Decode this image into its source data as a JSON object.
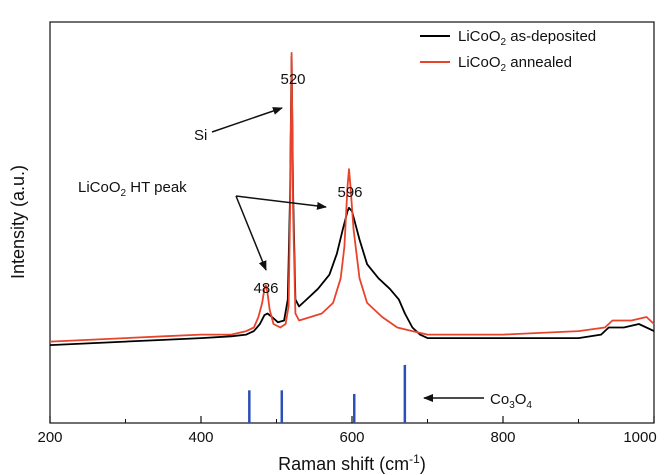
{
  "chart_data": {
    "type": "line",
    "title": "",
    "xlabel": "Raman shift (cm",
    "xlabel_sup": "-1",
    "xlabel_close": ")",
    "ylabel": "Intensity (a.u.)",
    "xlim": [
      200,
      1000
    ],
    "ylim": [
      0,
      100
    ],
    "x_ticks": [
      "200",
      "400",
      "600",
      "800",
      "1000"
    ],
    "x_tick_values": [
      200,
      400,
      600,
      800,
      1000
    ],
    "legend_position": "top-right",
    "grid": false,
    "series": [
      {
        "name_main": "LiCoO",
        "name_sub": "2",
        "name_rest": " as-deposited",
        "color": "#000000",
        "points": [
          [
            200,
            17
          ],
          [
            250,
            17.5
          ],
          [
            300,
            18
          ],
          [
            350,
            18.5
          ],
          [
            400,
            19
          ],
          [
            440,
            19.5
          ],
          [
            460,
            20
          ],
          [
            470,
            21
          ],
          [
            478,
            23
          ],
          [
            484,
            25.5
          ],
          [
            488,
            26
          ],
          [
            494,
            25
          ],
          [
            502,
            23.5
          ],
          [
            510,
            24
          ],
          [
            515,
            30
          ],
          [
            518,
            60
          ],
          [
            520,
            99
          ],
          [
            522,
            60
          ],
          [
            525,
            30
          ],
          [
            530,
            28
          ],
          [
            540,
            30
          ],
          [
            555,
            33
          ],
          [
            570,
            37
          ],
          [
            580,
            43
          ],
          [
            588,
            50
          ],
          [
            594,
            55
          ],
          [
            596,
            56
          ],
          [
            600,
            55
          ],
          [
            610,
            47
          ],
          [
            620,
            40
          ],
          [
            635,
            36
          ],
          [
            650,
            33
          ],
          [
            662,
            30
          ],
          [
            670,
            26
          ],
          [
            680,
            22
          ],
          [
            690,
            20
          ],
          [
            700,
            19
          ],
          [
            800,
            19
          ],
          [
            900,
            19
          ],
          [
            930,
            20
          ],
          [
            940,
            22
          ],
          [
            960,
            22
          ],
          [
            980,
            23
          ],
          [
            1000,
            21
          ]
        ]
      },
      {
        "name_main": "LiCoO",
        "name_sub": "2",
        "name_rest": " annealed",
        "color": "#e8442c",
        "points": [
          [
            200,
            18
          ],
          [
            250,
            18.5
          ],
          [
            300,
            19
          ],
          [
            350,
            19.5
          ],
          [
            400,
            20
          ],
          [
            440,
            20
          ],
          [
            460,
            21
          ],
          [
            470,
            22
          ],
          [
            476,
            25
          ],
          [
            481,
            29
          ],
          [
            484,
            33
          ],
          [
            486,
            34
          ],
          [
            488,
            32
          ],
          [
            491,
            27
          ],
          [
            496,
            23
          ],
          [
            505,
            22
          ],
          [
            512,
            23
          ],
          [
            516,
            28
          ],
          [
            518,
            55
          ],
          [
            520,
            100
          ],
          [
            522,
            55
          ],
          [
            525,
            26
          ],
          [
            530,
            24
          ],
          [
            545,
            25
          ],
          [
            560,
            26
          ],
          [
            575,
            29
          ],
          [
            585,
            36
          ],
          [
            590,
            45
          ],
          [
            594,
            62
          ],
          [
            596,
            67
          ],
          [
            598,
            62
          ],
          [
            602,
            50
          ],
          [
            610,
            36
          ],
          [
            620,
            29
          ],
          [
            640,
            25
          ],
          [
            660,
            22
          ],
          [
            680,
            21
          ],
          [
            700,
            20
          ],
          [
            800,
            20
          ],
          [
            900,
            21
          ],
          [
            935,
            22
          ],
          [
            945,
            24
          ],
          [
            970,
            24
          ],
          [
            990,
            25
          ],
          [
            1000,
            23
          ]
        ]
      }
    ],
    "reference_lines": {
      "name_main": "Co",
      "name_sub1": "3",
      "name_mid": "O",
      "name_sub2": "4",
      "color": "#2c4fb7",
      "positions": [
        464,
        507,
        603,
        670
      ],
      "heights": [
        9,
        9,
        8,
        16
      ]
    },
    "annotations": [
      {
        "text": "520",
        "x": 520
      },
      {
        "text": "486",
        "x": 486
      },
      {
        "text": "596",
        "x": 596
      },
      {
        "text": "Si"
      },
      {
        "text_main": "LiCoO",
        "text_sub": "2",
        "text_rest": " HT peak"
      }
    ]
  }
}
